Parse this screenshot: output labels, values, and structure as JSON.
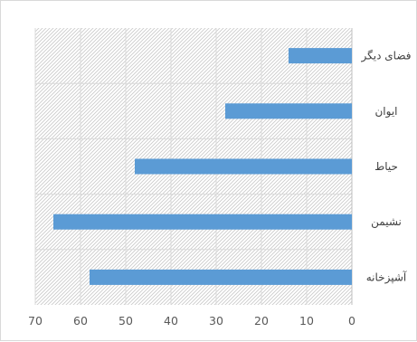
{
  "chart_data": {
    "type": "bar",
    "orientation": "horizontal",
    "x_axis_reversed": true,
    "categories": [
      "فضای دیگر",
      "ایوان",
      "حیاط",
      "نشیمن",
      "آشپزخانه"
    ],
    "values": [
      14,
      28,
      48,
      66,
      58
    ],
    "title": "",
    "xlabel": "",
    "ylabel": "",
    "xlim": [
      0,
      70
    ],
    "x_ticks": [
      0,
      10,
      20,
      30,
      40,
      50,
      60,
      70
    ],
    "x_tick_labels": [
      "0",
      "10",
      "20",
      "30",
      "40",
      "50",
      "60",
      "70"
    ],
    "grid": true,
    "plot_background": "hatched",
    "bar_color": "#5b9bd5",
    "grid_color": "#d9d9d9",
    "hatch_color": "#c9c9c9"
  }
}
